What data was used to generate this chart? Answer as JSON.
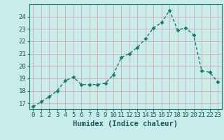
{
  "x": [
    0,
    1,
    2,
    3,
    4,
    5,
    6,
    7,
    8,
    9,
    10,
    11,
    12,
    13,
    14,
    15,
    16,
    17,
    18,
    19,
    20,
    21,
    22,
    23
  ],
  "y": [
    16.7,
    17.1,
    17.5,
    18.0,
    18.8,
    19.1,
    18.5,
    18.5,
    18.5,
    18.6,
    19.3,
    20.7,
    21.0,
    21.5,
    22.2,
    23.1,
    23.5,
    24.5,
    22.9,
    23.1,
    22.5,
    19.6,
    19.5,
    18.7
  ],
  "line_color": "#1a7a6a",
  "marker": "D",
  "marker_size": 2.5,
  "bg_color": "#c8ecea",
  "grid_color": "#d4aaaa",
  "ylabel_vals": [
    17,
    18,
    19,
    20,
    21,
    22,
    23,
    24
  ],
  "xlabel": "Humidex (Indice chaleur)",
  "ylim": [
    16.5,
    25.0
  ],
  "xlim": [
    -0.5,
    23.5
  ],
  "font_color": "#1a5a5a",
  "tick_fontsize": 6.5,
  "xlabel_fontsize": 7.5
}
